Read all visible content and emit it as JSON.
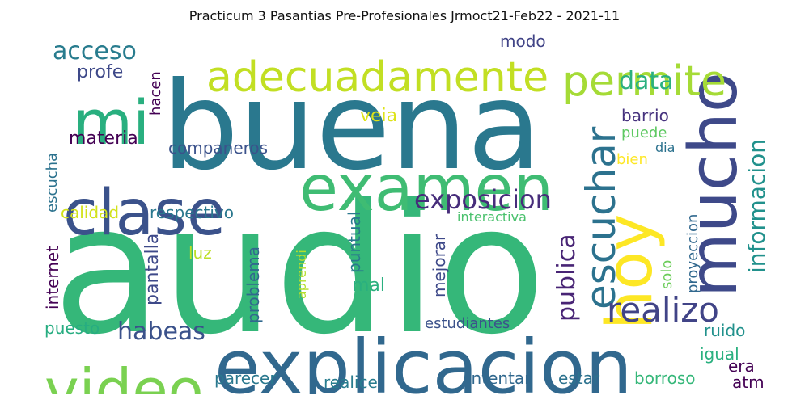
{
  "title": "Practicum 3 Pasantias Pre-Profesionales Jrmoct21-Feb22 - 2021-11",
  "words": [
    {
      "text": "audio",
      "color": "#35b779"
    },
    {
      "text": "buena",
      "color": "#2a788e"
    },
    {
      "text": "explicacion",
      "color": "#31688e"
    },
    {
      "text": "examen",
      "color": "#3fbc73"
    },
    {
      "text": "clase",
      "color": "#3b528b"
    },
    {
      "text": "video",
      "color": "#7ad151"
    },
    {
      "text": "mucho",
      "color": "#3e4989"
    },
    {
      "text": "hoy",
      "color": "#fde725"
    },
    {
      "text": "mi",
      "color": "#29af7f"
    },
    {
      "text": "adecuadamente",
      "color": "#c2df23"
    },
    {
      "text": "permite",
      "color": "#a5db36"
    },
    {
      "text": "escuchar",
      "color": "#2c728e"
    },
    {
      "text": "realizo",
      "color": "#414487"
    },
    {
      "text": "exposicion",
      "color": "#472d7b"
    },
    {
      "text": "habeas",
      "color": "#3b528b"
    },
    {
      "text": "acceso",
      "color": "#287c8e"
    },
    {
      "text": "data",
      "color": "#2ab07f"
    },
    {
      "text": "publica",
      "color": "#482475"
    },
    {
      "text": "informacion",
      "color": "#21918c"
    },
    {
      "text": "profe",
      "color": "#3e4989"
    },
    {
      "text": "modo",
      "color": "#414487"
    },
    {
      "text": "hacen",
      "color": "#440154"
    },
    {
      "text": "veia",
      "color": "#dde318"
    },
    {
      "text": "materia",
      "color": "#440154"
    },
    {
      "text": "companeros",
      "color": "#3b528b"
    },
    {
      "text": "barrio",
      "color": "#46327e"
    },
    {
      "text": "puede",
      "color": "#5ec962"
    },
    {
      "text": "dia",
      "color": "#2c728e"
    },
    {
      "text": "bien",
      "color": "#fde725"
    },
    {
      "text": "escucha",
      "color": "#2c728e"
    },
    {
      "text": "calidad",
      "color": "#d2e21b"
    },
    {
      "text": "respectivo",
      "color": "#2a788e"
    },
    {
      "text": "interactiva",
      "color": "#4ac16d"
    },
    {
      "text": "internet",
      "color": "#440154"
    },
    {
      "text": "pantalla",
      "color": "#3e4989"
    },
    {
      "text": "luz",
      "color": "#bddf26"
    },
    {
      "text": "problema",
      "color": "#31688e"
    },
    {
      "text": "aprendi",
      "color": "#b5de2b"
    },
    {
      "text": "puntual",
      "color": "#2a788e"
    },
    {
      "text": "mal",
      "color": "#2ab07f"
    },
    {
      "text": "mejorar",
      "color": "#3e4989"
    },
    {
      "text": "solo",
      "color": "#6ccd5a"
    },
    {
      "text": "proyeccion",
      "color": "#31688e"
    },
    {
      "text": "puesto",
      "color": "#27ad81"
    },
    {
      "text": "estudiantes",
      "color": "#3b528b"
    },
    {
      "text": "ruido",
      "color": "#21918c"
    },
    {
      "text": "igual",
      "color": "#2ab07f"
    },
    {
      "text": "era",
      "color": "#440154"
    },
    {
      "text": "atm",
      "color": "#440154"
    },
    {
      "text": "parecer",
      "color": "#2a788e"
    },
    {
      "text": "realice",
      "color": "#287c8e"
    },
    {
      "text": "intentar",
      "color": "#31688e"
    },
    {
      "text": "estar",
      "color": "#2c728e"
    },
    {
      "text": "borroso",
      "color": "#35b779"
    }
  ]
}
